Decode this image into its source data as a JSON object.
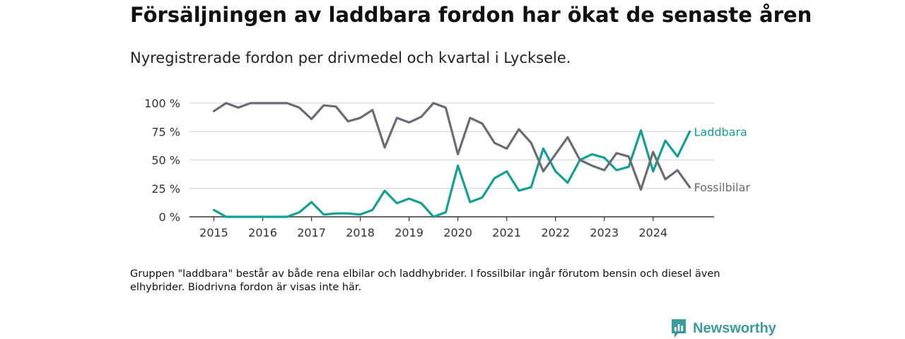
{
  "title": "Försäljningen av laddbara fordon har ökat de senaste åren",
  "subtitle": "Nyregistrerade fordon per drivmedel och kvartal i Lycksele.",
  "note": "Gruppen \"laddbara\" består av både rena elbilar och laddhybrider. I fossilbilar ingår förutom bensin och diesel även elhybrider. Biodrivna fordon är visas inte här.",
  "brand": {
    "name": "Newsworthy",
    "icon": "newsworthy-logo-icon",
    "color": "#3b9c9c"
  },
  "chart_data": {
    "type": "line",
    "ylim": [
      0,
      100
    ],
    "yticks": [
      0,
      25,
      50,
      75,
      100
    ],
    "ytick_labels": [
      "0 %",
      "25 %",
      "50 %",
      "75 %",
      "100 %"
    ],
    "xticks": [
      2015,
      2016,
      2017,
      2018,
      2019,
      2020,
      2021,
      2022,
      2023,
      2024
    ],
    "xtick_labels": [
      "2015",
      "2016",
      "2017",
      "2018",
      "2019",
      "2020",
      "2021",
      "2022",
      "2023",
      "2024"
    ],
    "x": [
      2015.0,
      2015.25,
      2015.5,
      2015.75,
      2016.0,
      2016.25,
      2016.5,
      2016.75,
      2017.0,
      2017.25,
      2017.5,
      2017.75,
      2018.0,
      2018.25,
      2018.5,
      2018.75,
      2019.0,
      2019.25,
      2019.5,
      2019.75,
      2020.0,
      2020.25,
      2020.5,
      2020.75,
      2021.0,
      2021.25,
      2021.5,
      2021.75,
      2022.0,
      2022.25,
      2022.5,
      2022.75,
      2023.0,
      2023.25,
      2023.5,
      2023.75,
      2024.0,
      2024.25,
      2024.5,
      2024.75
    ],
    "grid": true,
    "series": [
      {
        "name": "Laddbara",
        "color": "#12a096",
        "values": [
          6,
          0,
          0,
          0,
          0,
          0,
          0,
          4,
          13,
          2,
          3,
          3,
          2,
          6,
          23,
          12,
          16,
          12,
          0,
          4,
          45,
          13,
          17,
          34,
          40,
          23,
          26,
          60,
          40,
          30,
          50,
          55,
          52,
          41,
          44,
          76,
          40,
          67,
          53,
          75
        ]
      },
      {
        "name": "Fossilbilar",
        "color": "#6b6b73",
        "values": [
          93,
          100,
          96,
          100,
          100,
          100,
          100,
          96,
          86,
          98,
          97,
          84,
          87,
          94,
          61,
          87,
          83,
          88,
          100,
          96,
          55,
          87,
          82,
          65,
          60,
          77,
          65,
          40,
          55,
          70,
          50,
          45,
          41,
          56,
          53,
          24,
          57,
          33,
          41,
          26
        ]
      }
    ]
  }
}
